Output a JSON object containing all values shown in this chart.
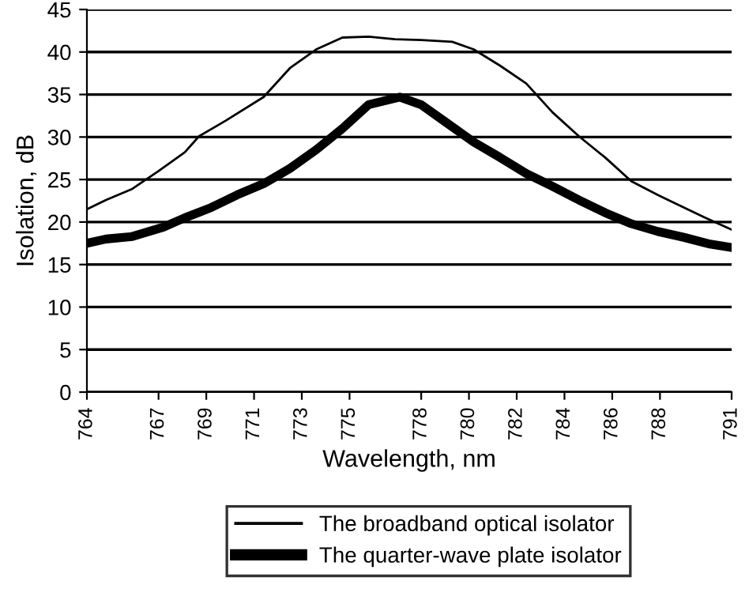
{
  "chart_data": {
    "type": "line",
    "xlabel": "Wavelength, nm",
    "ylabel": "Isolation, dB",
    "xlim": [
      764,
      791
    ],
    "ylim": [
      0,
      45
    ],
    "xticks": [
      764,
      767,
      769,
      771,
      773,
      775,
      778,
      780,
      782,
      784,
      786,
      788,
      791
    ],
    "yticks": [
      0,
      5,
      10,
      15,
      20,
      25,
      30,
      35,
      40,
      45
    ],
    "grid": "y",
    "legend": "bottom",
    "marker": "none",
    "line_style": "solid",
    "series": [
      {
        "name": "The broadband optical isolator",
        "color": "#000000",
        "x": [
          764.0,
          764.8,
          765.9,
          767.0,
          768.1,
          768.7,
          769.8,
          771.4,
          772.5,
          773.6,
          774.7,
          775.8,
          776.9,
          778.0,
          779.3,
          780.2,
          781.3,
          782.4,
          783.5,
          784.6,
          785.7,
          786.8,
          787.9,
          789.0,
          789.9,
          791.0
        ],
        "values": [
          21.5,
          22.6,
          23.9,
          26.0,
          28.2,
          30.1,
          31.9,
          34.7,
          38.1,
          40.3,
          41.7,
          41.8,
          41.5,
          41.4,
          41.2,
          40.3,
          38.4,
          36.3,
          32.9,
          30.1,
          27.6,
          24.8,
          23.2,
          21.7,
          20.5,
          19.1
        ]
      },
      {
        "name": "The quarter-wave plate isolator",
        "color": "#000000",
        "x": [
          764.0,
          764.8,
          765.9,
          767.2,
          768.1,
          769.2,
          770.3,
          771.4,
          772.5,
          773.6,
          774.7,
          775.8,
          777.1,
          778.0,
          779.1,
          780.2,
          781.3,
          782.4,
          783.5,
          784.6,
          785.7,
          786.8,
          787.9,
          789.0,
          790.1,
          791.0
        ],
        "values": [
          17.5,
          18.0,
          18.3,
          19.4,
          20.5,
          21.7,
          23.2,
          24.5,
          26.3,
          28.5,
          31.0,
          33.8,
          34.7,
          33.8,
          31.6,
          29.4,
          27.6,
          25.7,
          24.2,
          22.6,
          21.1,
          19.8,
          18.9,
          18.2,
          17.4,
          17.0
        ]
      }
    ]
  }
}
